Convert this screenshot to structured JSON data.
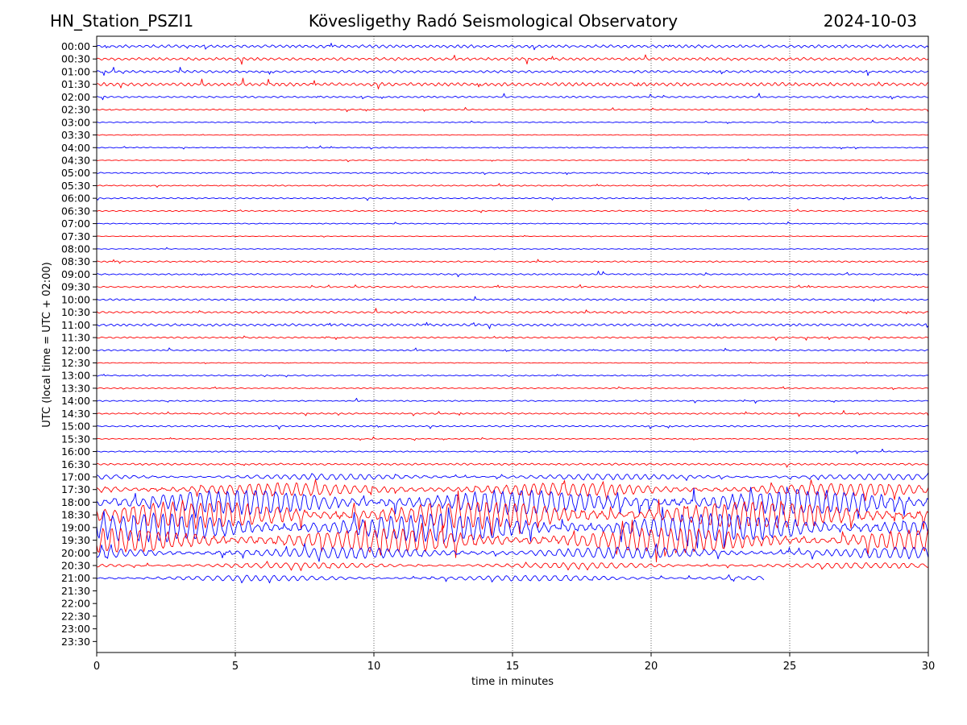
{
  "header": {
    "station": "HN_Station_PSZI1",
    "observatory": "Kövesligethy Radó Seismological Observatory",
    "date": "2024-10-03"
  },
  "colors": {
    "even_row": "#0000ff",
    "odd_row": "#ff0000",
    "frame": "#000000"
  },
  "chart_data": {
    "type": "line",
    "title": "Kövesligethy Radó Seismological Observatory",
    "xlabel": "time in minutes",
    "ylabel": "UTC (local time = UTC + 02:00)",
    "xlim": [
      0,
      30
    ],
    "x_ticks": [
      0,
      5,
      10,
      15,
      20,
      25,
      30
    ],
    "grid": "vertical dotted lines at every 5 minutes",
    "row_labels": [
      "00:00",
      "00:30",
      "01:00",
      "01:30",
      "02:00",
      "02:30",
      "03:00",
      "03:30",
      "04:00",
      "04:30",
      "05:00",
      "05:30",
      "06:00",
      "06:30",
      "07:00",
      "07:30",
      "08:00",
      "08:30",
      "09:00",
      "09:30",
      "10:00",
      "10:30",
      "11:00",
      "11:30",
      "12:00",
      "12:30",
      "13:00",
      "13:30",
      "14:00",
      "14:30",
      "15:00",
      "15:30",
      "16:00",
      "16:30",
      "17:00",
      "17:30",
      "18:00",
      "18:30",
      "19:00",
      "19:30",
      "20:00",
      "20:30",
      "21:00",
      "21:30",
      "22:00",
      "22:30",
      "23:00",
      "23:30"
    ],
    "series": [
      {
        "row": "00:00",
        "end_min": 30,
        "amp": 0.12,
        "color": "blue"
      },
      {
        "row": "00:30",
        "end_min": 30,
        "amp": 0.12,
        "color": "red"
      },
      {
        "row": "01:00",
        "end_min": 30,
        "amp": 0.1,
        "color": "blue"
      },
      {
        "row": "01:30",
        "end_min": 30,
        "amp": 0.14,
        "color": "red"
      },
      {
        "row": "02:00",
        "end_min": 30,
        "amp": 0.07,
        "color": "blue"
      },
      {
        "row": "02:30",
        "end_min": 30,
        "amp": 0.05,
        "color": "red"
      },
      {
        "row": "03:00",
        "end_min": 30,
        "amp": 0.04,
        "color": "blue"
      },
      {
        "row": "03:30",
        "end_min": 30,
        "amp": 0.03,
        "color": "red"
      },
      {
        "row": "04:00",
        "end_min": 30,
        "amp": 0.04,
        "color": "blue"
      },
      {
        "row": "04:30",
        "end_min": 30,
        "amp": 0.03,
        "color": "red"
      },
      {
        "row": "05:00",
        "end_min": 30,
        "amp": 0.05,
        "color": "blue"
      },
      {
        "row": "05:30",
        "end_min": 30,
        "amp": 0.05,
        "color": "red"
      },
      {
        "row": "06:00",
        "end_min": 30,
        "amp": 0.05,
        "color": "blue"
      },
      {
        "row": "06:30",
        "end_min": 30,
        "amp": 0.05,
        "color": "red"
      },
      {
        "row": "07:00",
        "end_min": 30,
        "amp": 0.04,
        "color": "blue"
      },
      {
        "row": "07:30",
        "end_min": 30,
        "amp": 0.03,
        "color": "red"
      },
      {
        "row": "08:00",
        "end_min": 30,
        "amp": 0.03,
        "color": "blue"
      },
      {
        "row": "08:30",
        "end_min": 30,
        "amp": 0.06,
        "color": "red"
      },
      {
        "row": "09:00",
        "end_min": 30,
        "amp": 0.06,
        "color": "blue"
      },
      {
        "row": "09:30",
        "end_min": 30,
        "amp": 0.06,
        "color": "red"
      },
      {
        "row": "10:00",
        "end_min": 30,
        "amp": 0.07,
        "color": "blue"
      },
      {
        "row": "10:30",
        "end_min": 30,
        "amp": 0.08,
        "color": "red"
      },
      {
        "row": "11:00",
        "end_min": 30,
        "amp": 0.1,
        "color": "blue"
      },
      {
        "row": "11:30",
        "end_min": 30,
        "amp": 0.06,
        "color": "red"
      },
      {
        "row": "12:00",
        "end_min": 30,
        "amp": 0.06,
        "color": "blue"
      },
      {
        "row": "12:30",
        "end_min": 30,
        "amp": 0.03,
        "color": "red"
      },
      {
        "row": "13:00",
        "end_min": 30,
        "amp": 0.05,
        "color": "blue"
      },
      {
        "row": "13:30",
        "end_min": 30,
        "amp": 0.04,
        "color": "red"
      },
      {
        "row": "14:00",
        "end_min": 30,
        "amp": 0.05,
        "color": "blue"
      },
      {
        "row": "14:30",
        "end_min": 30,
        "amp": 0.06,
        "color": "red"
      },
      {
        "row": "15:00",
        "end_min": 30,
        "amp": 0.06,
        "color": "blue"
      },
      {
        "row": "15:30",
        "end_min": 30,
        "amp": 0.04,
        "color": "red"
      },
      {
        "row": "16:00",
        "end_min": 30,
        "amp": 0.05,
        "color": "blue"
      },
      {
        "row": "16:30",
        "end_min": 30,
        "amp": 0.08,
        "color": "red"
      },
      {
        "row": "17:00",
        "end_min": 30,
        "amp": 0.3,
        "color": "blue"
      },
      {
        "row": "17:30",
        "end_min": 30,
        "amp": 0.7,
        "color": "red"
      },
      {
        "row": "18:00",
        "end_min": 30,
        "amp": 1.3,
        "color": "blue"
      },
      {
        "row": "18:30",
        "end_min": 30,
        "amp": 1.5,
        "color": "red"
      },
      {
        "row": "19:00",
        "end_min": 30,
        "amp": 1.5,
        "color": "blue"
      },
      {
        "row": "19:30",
        "end_min": 30,
        "amp": 1.3,
        "color": "red"
      },
      {
        "row": "20:00",
        "end_min": 30,
        "amp": 0.6,
        "color": "blue"
      },
      {
        "row": "20:30",
        "end_min": 30,
        "amp": 0.3,
        "color": "red"
      },
      {
        "row": "21:00",
        "end_min": 24.1,
        "amp": 0.3,
        "color": "blue"
      }
    ]
  }
}
